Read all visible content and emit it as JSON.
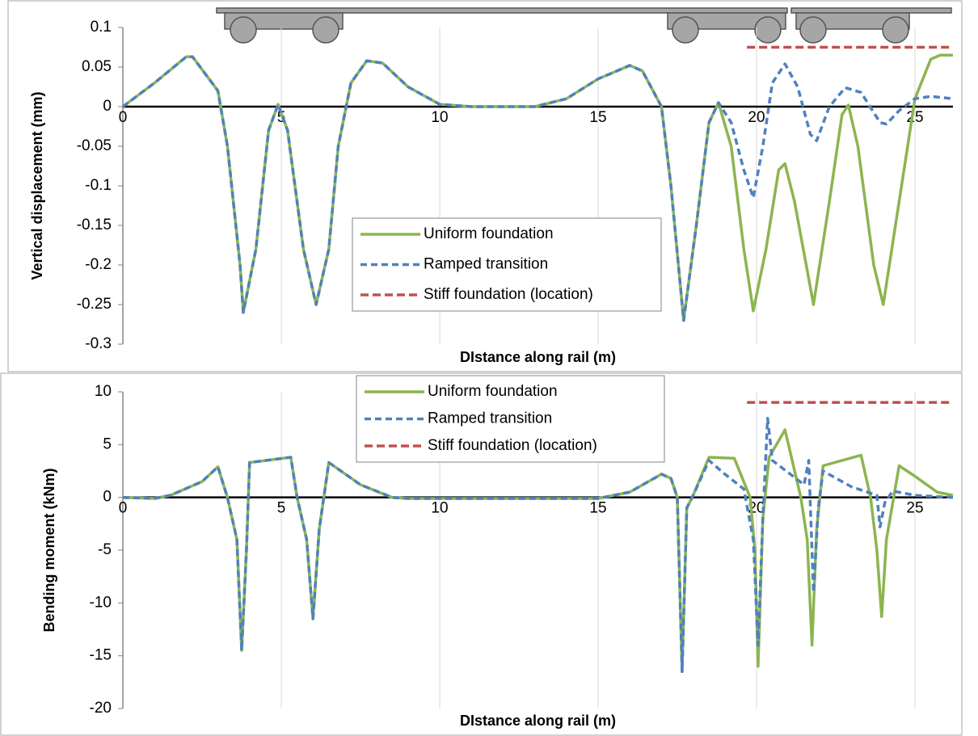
{
  "chart_data": [
    {
      "type": "line",
      "y_label": "Vertical displacement (mm)",
      "x_label": "DIstance along rail (m)",
      "xlim": [
        0,
        26.2
      ],
      "ylim": [
        -0.3,
        0.1
      ],
      "xticks": [
        0,
        5,
        10,
        15,
        20,
        25
      ],
      "yticks": [
        0.1,
        0.05,
        0,
        -0.05,
        -0.1,
        -0.15,
        -0.2,
        -0.25,
        -0.3
      ],
      "grid": "x",
      "series": [
        {
          "name": "Uniform foundation",
          "color": "#8cb550",
          "dash": "none",
          "x": [
            0,
            1,
            2,
            2.2,
            3,
            3.3,
            3.7,
            3.8,
            4.2,
            4.6,
            4.9,
            5.2,
            5.7,
            6.1,
            6.5,
            6.8,
            7.2,
            7.7,
            8.2,
            9,
            10,
            11,
            12,
            13,
            14,
            15,
            16,
            16.4,
            17,
            17.3,
            17.7,
            18.1,
            18.5,
            18.8,
            19.2,
            19.6,
            19.9,
            20.3,
            20.7,
            20.9,
            21.2,
            21.8,
            22.3,
            22.7,
            22.9,
            23.2,
            23.7,
            24,
            24.5,
            25,
            25.5,
            25.8,
            26.2
          ],
          "values": [
            0,
            0.03,
            0.063,
            0.063,
            0.02,
            -0.05,
            -0.2,
            -0.26,
            -0.18,
            -0.03,
            0.003,
            -0.03,
            -0.18,
            -0.25,
            -0.18,
            -0.05,
            0.03,
            0.058,
            0.055,
            0.025,
            0.003,
            0,
            0,
            0,
            0.01,
            0.035,
            0.052,
            0.045,
            0,
            -0.1,
            -0.27,
            -0.15,
            -0.02,
            0.005,
            -0.05,
            -0.18,
            -0.258,
            -0.18,
            -0.08,
            -0.072,
            -0.12,
            -0.25,
            -0.12,
            -0.01,
            0.002,
            -0.05,
            -0.2,
            -0.25,
            -0.12,
            0.01,
            0.06,
            0.065,
            0.065
          ]
        },
        {
          "name": "Ramped transition",
          "color": "#4f81bd",
          "dash": "8 5",
          "x": [
            0,
            1,
            2,
            2.2,
            3,
            3.3,
            3.7,
            3.8,
            4.2,
            4.6,
            4.9,
            5.2,
            5.7,
            6.1,
            6.5,
            6.8,
            7.2,
            7.7,
            8.2,
            9,
            10,
            11,
            12,
            13,
            14,
            15,
            16,
            16.4,
            17,
            17.3,
            17.7,
            18.1,
            18.5,
            18.8,
            19.2,
            19.6,
            19.9,
            20.2,
            20.5,
            20.9,
            21.3,
            21.7,
            21.9,
            22.3,
            22.8,
            23.3,
            23.9,
            24.1,
            24.5,
            25,
            25.5,
            26.2
          ],
          "values": [
            0,
            0.03,
            0.063,
            0.063,
            0.02,
            -0.05,
            -0.2,
            -0.26,
            -0.18,
            -0.03,
            0.003,
            -0.03,
            -0.18,
            -0.25,
            -0.18,
            -0.05,
            0.03,
            0.058,
            0.055,
            0.025,
            0.003,
            0,
            0,
            0,
            0.01,
            0.035,
            0.052,
            0.045,
            0,
            -0.1,
            -0.27,
            -0.15,
            -0.02,
            0.005,
            -0.02,
            -0.08,
            -0.115,
            -0.05,
            0.03,
            0.054,
            0.025,
            -0.035,
            -0.043,
            0,
            0.024,
            0.018,
            -0.02,
            -0.022,
            -0.005,
            0.01,
            0.013,
            0.01
          ]
        },
        {
          "name": "Stiff foundation (location)",
          "color": "#c0504d",
          "dash": "10 5",
          "x": [
            19.7,
            26.2
          ],
          "values": [
            0.075,
            0.075
          ]
        }
      ]
    },
    {
      "type": "line",
      "y_label": "Bending moment (kNm)",
      "x_label": "DIstance along rail (m)",
      "xlim": [
        0,
        26.2
      ],
      "ylim": [
        -20,
        10
      ],
      "xticks": [
        0,
        5,
        10,
        15,
        20,
        25
      ],
      "yticks": [
        10,
        5,
        0,
        -5,
        -10,
        -15,
        -20
      ],
      "grid": "x",
      "series": [
        {
          "name": "Uniform foundation",
          "color": "#8cb550",
          "dash": "none",
          "x": [
            0,
            1,
            1.5,
            2.5,
            3,
            3.3,
            3.6,
            3.75,
            3.9,
            4,
            5.3,
            5.5,
            5.8,
            6,
            6.2,
            6.5,
            7.5,
            8.5,
            9,
            10,
            15,
            16,
            17,
            17.3,
            17.5,
            17.65,
            17.8,
            18,
            18.5,
            19.3,
            19.8,
            19.95,
            20.05,
            20.2,
            20.4,
            20.9,
            21.4,
            21.6,
            21.75,
            21.9,
            22.1,
            23.3,
            23.6,
            23.8,
            23.95,
            24.1,
            24.5,
            25,
            25.7,
            26.2
          ],
          "values": [
            0,
            -0.1,
            0.2,
            1.5,
            2.9,
            0,
            -4,
            -14.5,
            -5,
            3.3,
            3.8,
            0,
            -4,
            -11.5,
            -3,
            3.3,
            1.2,
            0,
            -0.1,
            -0.1,
            -0.1,
            0.5,
            2.2,
            1.8,
            0,
            -16.5,
            -1,
            0.2,
            3.8,
            3.7,
            0,
            -5,
            -16,
            -2,
            3.8,
            6.4,
            0,
            -4,
            -14,
            -3,
            3,
            4,
            0,
            -5,
            -11.3,
            -4,
            3,
            2,
            0.5,
            0.2
          ]
        },
        {
          "name": "Ramped transition",
          "color": "#4f81bd",
          "dash": "8 5",
          "x": [
            0,
            1,
            1.5,
            2.5,
            3,
            3.3,
            3.6,
            3.75,
            3.9,
            4,
            5.3,
            5.5,
            5.8,
            6,
            6.2,
            6.5,
            7.5,
            8.5,
            9,
            10,
            15,
            16,
            17,
            17.3,
            17.5,
            17.65,
            17.8,
            18,
            18.5,
            19,
            19.6,
            19.9,
            20.05,
            20.2,
            20.35,
            20.5,
            21.5,
            21.65,
            21.8,
            21.95,
            22.1,
            23,
            23.8,
            23.9,
            24.05,
            24.3,
            25,
            26.2
          ],
          "values": [
            0,
            -0.1,
            0.2,
            1.5,
            2.9,
            0,
            -4,
            -14.5,
            -5,
            3.3,
            3.8,
            0,
            -4,
            -11.5,
            -3,
            3.3,
            1.2,
            0,
            -0.1,
            -0.1,
            -0.1,
            0.5,
            2.2,
            1.8,
            0,
            -16.5,
            -1,
            0.2,
            3.5,
            2.2,
            0.8,
            -4,
            -14,
            -2,
            7.5,
            3.5,
            1.2,
            3.5,
            -9,
            -1,
            2.5,
            1,
            0.2,
            -2.8,
            -0.5,
            0.6,
            0.2,
            0
          ]
        },
        {
          "name": "Stiff foundation (location)",
          "color": "#c0504d",
          "dash": "10 5",
          "x": [
            19.7,
            26.2
          ],
          "values": [
            9,
            9
          ]
        }
      ]
    }
  ]
}
